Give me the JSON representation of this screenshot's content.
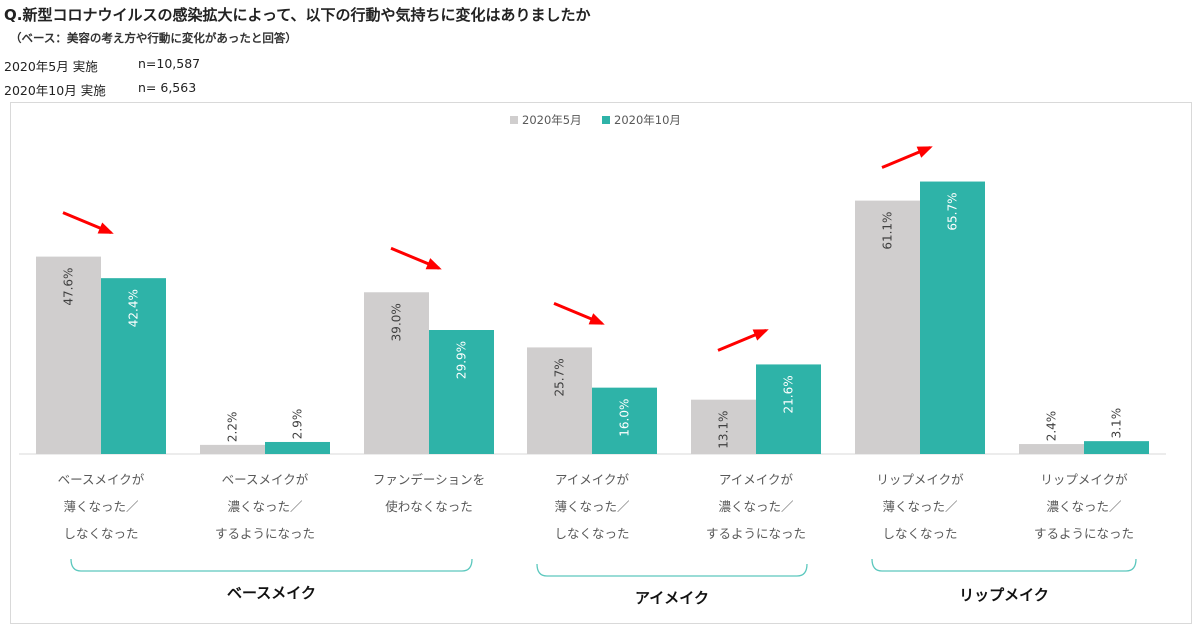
{
  "question": "Q.新型コロナウイルスの感染拡大によって、以下の行動や気持ちに変化はありましたか",
  "base_note": "（ベース：美容の考え方や行動に変化があったと回答）",
  "surveys": [
    {
      "label": "2020年5月 実施",
      "n": "n=10,587"
    },
    {
      "label": "2020年10月 実施",
      "n": "n= 6,563"
    }
  ],
  "colors": {
    "may": "#d0cece",
    "oct": "#2eb3a8",
    "arrow": "#ff0000",
    "bracket": "#5cc8be"
  },
  "chart_data": {
    "type": "bar",
    "categories": [
      [
        "ベースメイクが",
        "薄くなった／",
        "しなくなった"
      ],
      [
        "ベースメイクが",
        "濃くなった／",
        "するようになった"
      ],
      [
        "ファンデーションを",
        "使わなくなった"
      ],
      [
        "アイメイクが",
        "薄くなった／",
        "しなくなった"
      ],
      [
        "アイメイクが",
        "濃くなった／",
        "するようになった"
      ],
      [
        "リップメイクが",
        "薄くなった／",
        "しなくなった"
      ],
      [
        "リップメイクが",
        "濃くなった／",
        "するようになった"
      ]
    ],
    "series": [
      {
        "name": "2020年5月",
        "values": [
          47.6,
          2.2,
          39.0,
          25.7,
          13.1,
          61.1,
          2.4
        ],
        "labels": [
          "47.6%",
          "2.2%",
          "39.0%",
          "25.7%",
          "13.1%",
          "61.1%",
          "2.4%"
        ]
      },
      {
        "name": "2020年10月",
        "values": [
          42.4,
          2.9,
          29.9,
          16.0,
          21.6,
          65.7,
          3.1
        ],
        "labels": [
          "42.4%",
          "2.9%",
          "29.9%",
          "16.0%",
          "21.6%",
          "65.7%",
          "3.1%"
        ]
      }
    ],
    "trend_arrows": [
      "down",
      null,
      "down",
      "down",
      "up",
      "up",
      null
    ],
    "groups": [
      {
        "label": "ベースメイク",
        "categories": [
          0,
          1,
          2
        ]
      },
      {
        "label": "アイメイク",
        "categories": [
          3,
          4
        ]
      },
      {
        "label": "リップメイク",
        "categories": [
          5,
          6
        ]
      }
    ],
    "legend_position": "top-center",
    "ylim": [
      0,
      70
    ],
    "grid": false
  }
}
